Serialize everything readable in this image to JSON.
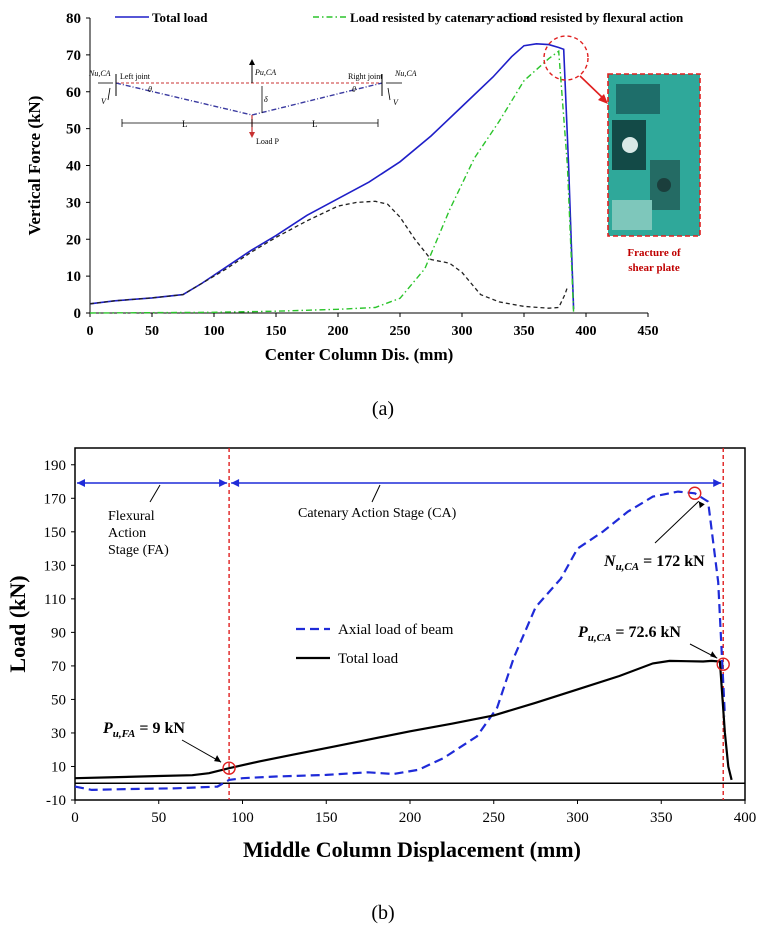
{
  "panel_a": {
    "label": "(a)",
    "legend": {
      "total": "Total load",
      "catenary": "Load resisted by catenary action",
      "flexural": "Load resisted by flexural action"
    },
    "inset": {
      "n_left": "N",
      "n_left_sub": "u,CA",
      "n_right": "N",
      "n_right_sub": "u,CA",
      "p_top": "P",
      "p_top_sub": "u,CA",
      "left_joint": "Left joint",
      "right_joint": "Right joint",
      "v_left": "V",
      "v_right": "V",
      "theta_left": "θ",
      "theta_right": "θ",
      "delta": "δ",
      "span_left": "L",
      "span_right": "L",
      "load_p": "Load P"
    },
    "photo_caption_line1": "Fracture  of",
    "photo_caption_line2": "shear plate"
  },
  "panel_b": {
    "label": "(b)",
    "stage_fa": [
      "Flexural",
      "Action",
      "Stage (FA)"
    ],
    "stage_ca": "Catenary  Action Stage (CA)",
    "ann_nu_main": "N",
    "ann_nu_sub": "u,CA",
    "ann_nu_val": " = 172 kN",
    "ann_pu_main": "P",
    "ann_pu_sub": "u,CA",
    "ann_pu_val": " = 72.6 kN",
    "ann_pfa_main": "P",
    "ann_pfa_sub": "u,FA",
    "ann_pfa_val": " = 9 kN"
  },
  "colors": {
    "total_a": "#1f1fc8",
    "catenary_a": "#2bc42b",
    "flexural_a": "#222222",
    "axial_b": "#1f2bd8",
    "total_b": "#000000",
    "red": "#e02020",
    "arrow_blue": "#1f2bd8"
  },
  "chart_data": [
    {
      "type": "line",
      "title": "",
      "xlabel": "Center Column Dis. (mm)",
      "ylabel": "Vertical Force (kN)",
      "xlim": [
        0,
        450
      ],
      "ylim": [
        0,
        80
      ],
      "xticks": [
        0,
        50,
        100,
        150,
        200,
        250,
        300,
        350,
        400,
        450
      ],
      "yticks": [
        0,
        10,
        20,
        30,
        40,
        50,
        60,
        70,
        80
      ],
      "legend_position": "top",
      "grid": false,
      "series": [
        {
          "name": "Total load",
          "style": "solid",
          "x": [
            0,
            20,
            50,
            75,
            90,
            110,
            130,
            150,
            175,
            200,
            225,
            250,
            275,
            300,
            325,
            340,
            350,
            360,
            370,
            378,
            382,
            386,
            390
          ],
          "y": [
            2.5,
            3.3,
            4.1,
            5.0,
            8.0,
            12.5,
            17.0,
            21.0,
            26.5,
            31.0,
            35.5,
            41.0,
            48.0,
            56.0,
            64.0,
            69.5,
            72.5,
            73.0,
            72.8,
            72.0,
            71.5,
            40.0,
            1.0
          ]
        },
        {
          "name": "Load resisted by catenary action",
          "style": "dashdot",
          "x": [
            0,
            100,
            150,
            200,
            230,
            250,
            270,
            290,
            310,
            330,
            350,
            370,
            378,
            385,
            390
          ],
          "y": [
            0,
            0.2,
            0.5,
            1.0,
            1.5,
            4.0,
            12.0,
            28.0,
            42.0,
            52.0,
            63.0,
            69.0,
            71.0,
            40.0,
            0
          ]
        },
        {
          "name": "Load resisted by flexural action",
          "style": "dashed",
          "x": [
            0,
            20,
            50,
            75,
            90,
            110,
            130,
            150,
            175,
            200,
            215,
            230,
            240,
            250,
            262,
            275,
            290,
            300,
            315,
            330,
            350,
            370,
            378,
            383,
            385
          ],
          "y": [
            2.5,
            3.3,
            4.1,
            5.0,
            8.0,
            12.0,
            16.5,
            20.5,
            25.0,
            29.0,
            30.0,
            30.3,
            29.5,
            26.0,
            20.0,
            14.5,
            13.5,
            11.0,
            5.0,
            3.0,
            1.8,
            1.3,
            1.5,
            5.0,
            7.0
          ]
        }
      ]
    },
    {
      "type": "line",
      "title": "",
      "xlabel": "Middle Column Displacement (mm)",
      "ylabel": "Load (kN)",
      "xlim": [
        0,
        400
      ],
      "ylim": [
        -10,
        200
      ],
      "xticks": [
        0,
        50,
        100,
        150,
        200,
        250,
        300,
        350,
        400
      ],
      "yticks": [
        -10,
        10,
        30,
        50,
        70,
        90,
        110,
        130,
        150,
        170,
        190
      ],
      "grid": false,
      "series": [
        {
          "name": "Axial load of beam",
          "style": "dashed",
          "x": [
            0,
            10,
            30,
            60,
            85,
            92,
            100,
            120,
            150,
            175,
            190,
            205,
            220,
            240,
            252,
            262,
            275,
            290,
            300,
            315,
            330,
            345,
            360,
            370,
            378,
            384,
            388
          ],
          "y": [
            -2,
            -4,
            -3.5,
            -3,
            -2,
            2,
            3,
            4,
            5,
            6.5,
            5.5,
            8,
            15,
            28,
            45,
            75,
            105,
            122,
            140,
            150,
            162,
            171,
            174,
            173,
            168,
            120,
            40
          ]
        },
        {
          "name": "Total load",
          "style": "solid",
          "x": [
            0,
            20,
            50,
            70,
            80,
            92,
            110,
            130,
            155,
            175,
            200,
            225,
            250,
            275,
            300,
            325,
            345,
            355,
            365,
            375,
            380,
            385,
            388,
            390,
            392
          ],
          "y": [
            3,
            3.5,
            4.3,
            4.8,
            6,
            9,
            13,
            17,
            22,
            26,
            31,
            35.5,
            40.5,
            48,
            56,
            64,
            71.5,
            73,
            72.8,
            72.6,
            73,
            72.6,
            30,
            10,
            2
          ]
        }
      ]
    }
  ]
}
